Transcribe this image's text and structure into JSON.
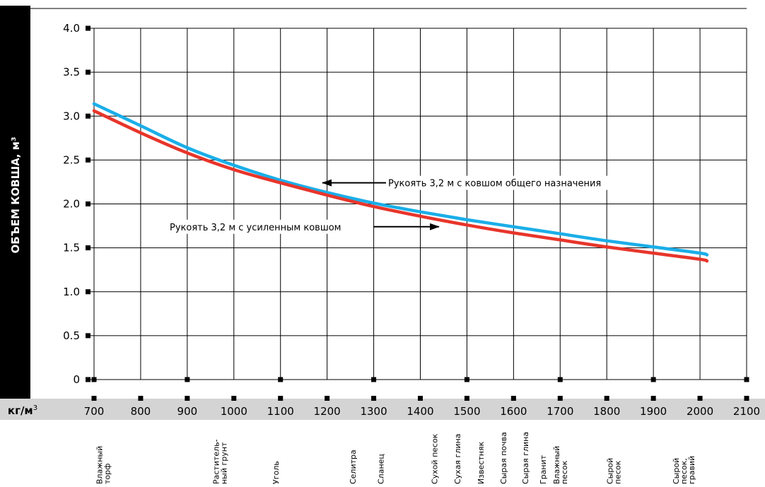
{
  "chart_data": {
    "type": "line",
    "ylabel": "ОБЪЕМ КОВША, м³",
    "xunit": "кг/м",
    "xunit_sup": "3",
    "xlim": [
      700,
      2100
    ],
    "ylim": [
      0,
      4.0
    ],
    "x_ticks": [
      "700",
      "800",
      "900",
      "1000",
      "1100",
      "1200",
      "1300",
      "1400",
      "1500",
      "1600",
      "1700",
      "1800",
      "1900",
      "2000",
      "2100"
    ],
    "y_ticks": [
      "0",
      "0.5",
      "1.0",
      "1.5",
      "2.0",
      "2.5",
      "3.0",
      "3.5",
      "4.0"
    ],
    "grid": true,
    "series": [
      {
        "name": "Рукоять 3,2 м с ковшом общего назначения",
        "color": "#1aaee8",
        "x": [
          700,
          800,
          900,
          1000,
          1100,
          1200,
          1300,
          1400,
          1500,
          1600,
          1700,
          1800,
          1900,
          2000,
          2015
        ],
        "y": [
          3.14,
          2.89,
          2.64,
          2.44,
          2.27,
          2.13,
          2.01,
          1.91,
          1.82,
          1.74,
          1.66,
          1.58,
          1.51,
          1.44,
          1.42
        ]
      },
      {
        "name": "Рукоять 3,2 м с усиленным ковшом",
        "color": "#e8352b",
        "x": [
          700,
          800,
          900,
          1000,
          1100,
          1200,
          1300,
          1400,
          1500,
          1600,
          1700,
          1800,
          1900,
          2000,
          2015
        ],
        "y": [
          3.06,
          2.81,
          2.58,
          2.39,
          2.24,
          2.1,
          1.97,
          1.86,
          1.76,
          1.67,
          1.59,
          1.51,
          1.44,
          1.37,
          1.35
        ]
      }
    ],
    "annotations": [
      {
        "text": "Рукоять 3,2 м с ковшом общего назначения",
        "x": 1190,
        "y": 2.24
      },
      {
        "text": "Рукоять 3,2 м с усиленным ковшом",
        "x": 1440,
        "y": 1.74
      }
    ],
    "materials": [
      {
        "lines": [
          "Влажный",
          "торф"
        ],
        "x": 720
      },
      {
        "lines": [
          "Раститель-",
          "ный грунт"
        ],
        "x": 970
      },
      {
        "lines": [
          "Уголь"
        ],
        "x": 1090
      },
      {
        "lines": [
          "Селитра"
        ],
        "x": 1255
      },
      {
        "lines": [
          "Сланец"
        ],
        "x": 1315
      },
      {
        "lines": [
          "Сухой песок"
        ],
        "x": 1430
      },
      {
        "lines": [
          "Сухая глина"
        ],
        "x": 1480
      },
      {
        "lines": [
          "Известняк"
        ],
        "x": 1530
      },
      {
        "lines": [
          "Сырая почва"
        ],
        "x": 1578
      },
      {
        "lines": [
          "Сырая глина"
        ],
        "x": 1625
      },
      {
        "lines": [
          "Гранит"
        ],
        "x": 1663
      },
      {
        "lines": [
          "Влажный",
          "песок"
        ],
        "x": 1700
      },
      {
        "lines": [
          "Сырой",
          "песок"
        ],
        "x": 1815
      },
      {
        "lines": [
          "Сырой",
          "песок,",
          "гравий"
        ],
        "x": 1965
      }
    ]
  }
}
